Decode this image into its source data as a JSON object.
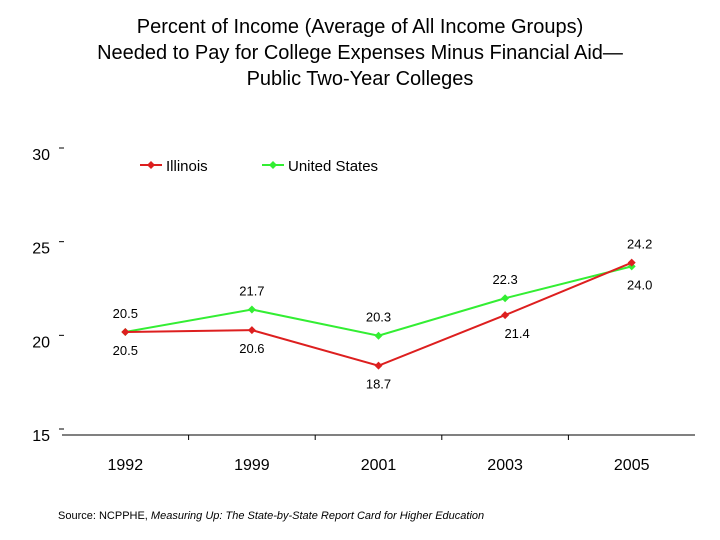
{
  "chart_data": {
    "type": "line",
    "title_lines": [
      "Percent of Income (Average of All Income Groups)",
      "Needed to Pay for College Expenses Minus Financial Aid—",
      "Public Two-Year Colleges"
    ],
    "categories": [
      "1992",
      "1999",
      "2001",
      "2003",
      "2005"
    ],
    "series": [
      {
        "name": "Illinois",
        "color": "#dd1f1f",
        "values": [
          20.5,
          20.6,
          18.7,
          21.4,
          24.2
        ]
      },
      {
        "name": "United States",
        "color": "#33ee33",
        "values": [
          20.5,
          21.7,
          20.3,
          22.3,
          24.0
        ]
      }
    ],
    "ylim": [
      15,
      30
    ],
    "yticks": [
      "15",
      "20",
      "25",
      "30"
    ],
    "grid": false,
    "legend_position": "top-center",
    "data_labels": {
      "Illinois": [
        "20.5",
        "20.6",
        "18.7",
        "21.4",
        "24.2"
      ],
      "United States": [
        "20.5",
        "21.7",
        "20.3",
        "22.3",
        "24.0"
      ]
    }
  },
  "source": {
    "prefix": "Source:  NCPPHE, ",
    "italic": "Measuring Up: The State-by-State Report Card for Higher Education"
  }
}
